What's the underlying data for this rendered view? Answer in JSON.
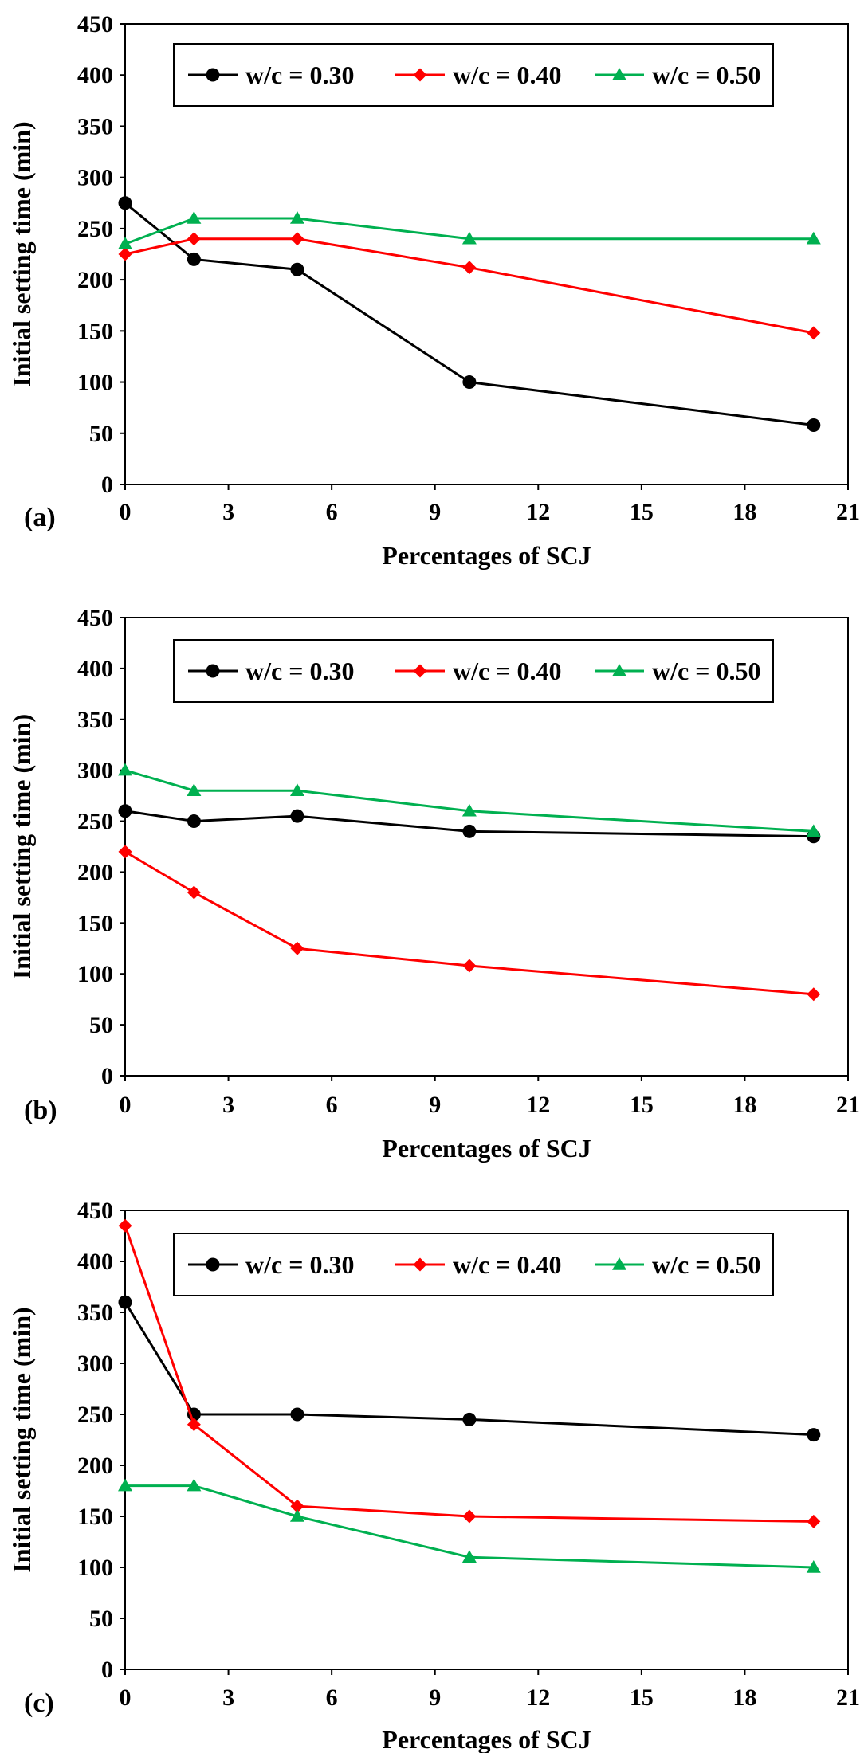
{
  "colors": {
    "w030": "#000000",
    "w040": "#ff0000",
    "w050": "#00b050"
  },
  "chart_data": [
    {
      "type": "line",
      "panel_label": "(a)",
      "xlabel": "Percentages of SCJ",
      "ylabel": "Initial setting time (min)",
      "xlim": [
        0,
        21
      ],
      "ylim": [
        0,
        450
      ],
      "xticks": [
        0,
        3,
        6,
        9,
        12,
        15,
        18,
        21
      ],
      "yticks": [
        0,
        50,
        100,
        150,
        200,
        250,
        300,
        350,
        400,
        450
      ],
      "x": [
        0,
        2,
        5,
        10,
        20
      ],
      "legend_position": "top",
      "series": [
        {
          "name": "w/c = 0.30",
          "marker": "circle",
          "color": "#000000",
          "values": [
            275,
            220,
            210,
            100,
            58
          ]
        },
        {
          "name": "w/c = 0.40",
          "marker": "diamond",
          "color": "#ff0000",
          "values": [
            225,
            240,
            240,
            212,
            148
          ]
        },
        {
          "name": "w/c = 0.50",
          "marker": "triangle",
          "color": "#00b050",
          "values": [
            235,
            260,
            260,
            240,
            240
          ]
        }
      ]
    },
    {
      "type": "line",
      "panel_label": "(b)",
      "xlabel": "Percentages of SCJ",
      "ylabel": "Initial setting time (min)",
      "xlim": [
        0,
        21
      ],
      "ylim": [
        0,
        450
      ],
      "xticks": [
        0,
        3,
        6,
        9,
        12,
        15,
        18,
        21
      ],
      "yticks": [
        0,
        50,
        100,
        150,
        200,
        250,
        300,
        350,
        400,
        450
      ],
      "x": [
        0,
        2,
        5,
        10,
        20
      ],
      "legend_position": "top",
      "series": [
        {
          "name": "w/c = 0.30",
          "marker": "circle",
          "color": "#000000",
          "values": [
            260,
            250,
            255,
            240,
            235
          ]
        },
        {
          "name": "w/c = 0.40",
          "marker": "diamond",
          "color": "#ff0000",
          "values": [
            220,
            180,
            125,
            108,
            80
          ]
        },
        {
          "name": "w/c = 0.50",
          "marker": "triangle",
          "color": "#00b050",
          "values": [
            300,
            280,
            280,
            260,
            240
          ]
        }
      ]
    },
    {
      "type": "line",
      "panel_label": "(c)",
      "xlabel": "Percentages of SCJ",
      "ylabel": "Initial setting time (min)",
      "xlim": [
        0,
        21
      ],
      "ylim": [
        0,
        450
      ],
      "xticks": [
        0,
        3,
        6,
        9,
        12,
        15,
        18,
        21
      ],
      "yticks": [
        0,
        50,
        100,
        150,
        200,
        250,
        300,
        350,
        400,
        450
      ],
      "x": [
        0,
        2,
        5,
        10,
        20
      ],
      "legend_position": "top",
      "series": [
        {
          "name": "w/c = 0.30",
          "marker": "circle",
          "color": "#000000",
          "values": [
            360,
            250,
            250,
            245,
            230
          ]
        },
        {
          "name": "w/c = 0.40",
          "marker": "diamond",
          "color": "#ff0000",
          "values": [
            435,
            240,
            160,
            150,
            145
          ]
        },
        {
          "name": "w/c = 0.50",
          "marker": "triangle",
          "color": "#00b050",
          "values": [
            180,
            180,
            150,
            110,
            100
          ]
        }
      ]
    }
  ]
}
